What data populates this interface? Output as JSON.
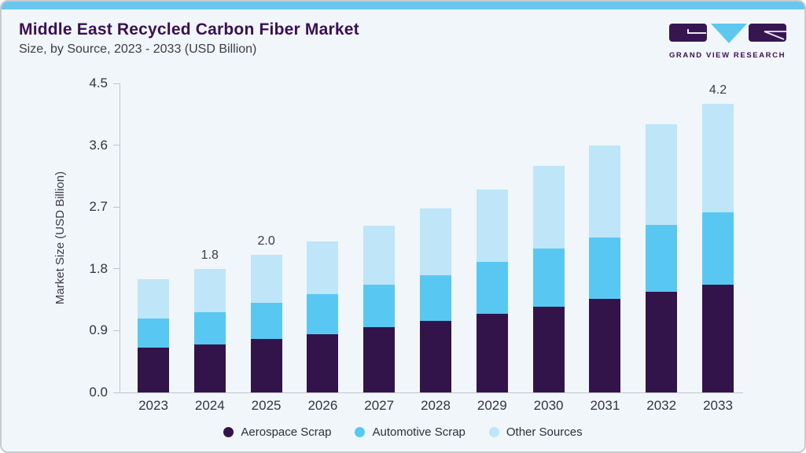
{
  "page": {
    "background": "#f1f6fa",
    "accent_strip_color": "#69c6ed",
    "border_color": "#c6cbd0"
  },
  "header": {
    "title": "Middle East Recycled Carbon Fiber Market",
    "subtitle": "Size, by Source, 2023 - 2033 (USD Billion)",
    "title_color": "#3a1053",
    "brand_name": "GRAND VIEW RESEARCH"
  },
  "chart_data": {
    "type": "bar",
    "stacked": true,
    "title": "Middle East Recycled Carbon Fiber Market Size, by Source, 2023 - 2033 (USD Billion)",
    "xlabel": "",
    "ylabel": "Market Size (USD Billion)",
    "ylim": [
      0,
      4.5
    ],
    "ytick_labels": [
      "0.0",
      "0.9",
      "1.8",
      "2.7",
      "3.6",
      "4.5"
    ],
    "grid": false,
    "legend_position": "bottom",
    "categories": [
      "2023",
      "2024",
      "2025",
      "2026",
      "2027",
      "2028",
      "2029",
      "2030",
      "2031",
      "2032",
      "2033"
    ],
    "series": [
      {
        "name": "Aerospace Scrap",
        "color": "#32144a",
        "values": [
          0.65,
          0.7,
          0.78,
          0.85,
          0.95,
          1.04,
          1.14,
          1.25,
          1.36,
          1.47,
          1.57
        ]
      },
      {
        "name": "Automotive Scrap",
        "color": "#58c8f3",
        "values": [
          0.43,
          0.47,
          0.52,
          0.58,
          0.62,
          0.67,
          0.76,
          0.84,
          0.9,
          0.97,
          1.05
        ]
      },
      {
        "name": "Other Sources",
        "color": "#bfe5f8",
        "values": [
          0.57,
          0.63,
          0.7,
          0.77,
          0.86,
          0.97,
          1.06,
          1.21,
          1.34,
          1.46,
          1.58
        ]
      }
    ],
    "bar_total_labels": [
      "",
      "1.8",
      "2.0",
      "",
      "",
      "",
      "",
      "",
      "",
      "",
      "4.2"
    ]
  }
}
